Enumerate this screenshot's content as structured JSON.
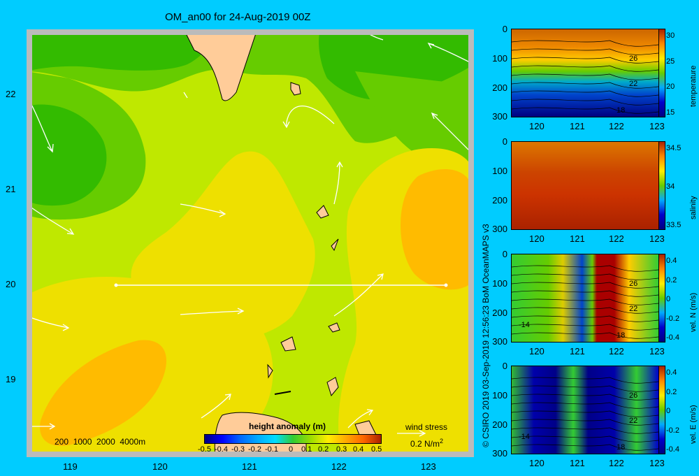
{
  "title": "OM_an00 for 24-Aug-2019 00Z",
  "main_map": {
    "x_ticks": [
      "119",
      "120",
      "121",
      "122",
      "123"
    ],
    "y_ticks": [
      "22",
      "21",
      "20",
      "19"
    ],
    "depth_legend": "200  1000  2000  4000m",
    "colorbar_title": "height anomaly  (m)",
    "colorbar_ticks": [
      "-0.5",
      "-0.4",
      "-0.3",
      "-0.2",
      "-0.1",
      "0",
      "0.1",
      "0.2",
      "0.3",
      "0.4",
      "0.5"
    ],
    "wind_stress_label": "wind stress",
    "wind_stress_scale": "0.2 N/m",
    "wind_stress_exp": "2"
  },
  "credit": "© CSIRO 2019   03-Sep-2019 12:56:23 BoM OceanMAPS v3",
  "colors": {
    "background": "#00ccff",
    "land": "#ffcc99",
    "shelf": "#c0b0a0",
    "arrow": "#ffffff"
  },
  "chart_data": [
    {
      "type": "heatmap",
      "title": "OM_an00 for 24-Aug-2019 00Z",
      "xlabel": "",
      "ylabel": "",
      "xlim": [
        118.5,
        123.5
      ],
      "ylim": [
        18.3,
        22.6
      ],
      "x_ticks": [
        119,
        120,
        121,
        122,
        123
      ],
      "y_ticks": [
        19,
        20,
        21,
        22
      ],
      "colorbar": {
        "label": "height anomaly  (m)",
        "range": [
          -0.5,
          0.5
        ]
      },
      "features": [
        {
          "name": "cold eddy NW",
          "lon": 119.0,
          "lat": 21.5,
          "value": 0.0
        },
        {
          "name": "warm eddy E",
          "lon": 123.0,
          "lat": 20.7,
          "value": 0.3
        },
        {
          "name": "warm eddy SW",
          "lon": 119.5,
          "lat": 18.8,
          "value": 0.3
        },
        {
          "name": "band",
          "lon": 120.5,
          "lat": 20.0,
          "value": 0.2
        }
      ],
      "section_line": {
        "lon": [
          119.5,
          123.2
        ],
        "lat": [
          20.0,
          20.0
        ]
      }
    },
    {
      "type": "heatmap",
      "title": "",
      "ylabel": "temperature",
      "x_ticks": [
        120,
        121,
        122,
        123
      ],
      "y_ticks": [
        0,
        100,
        200,
        300
      ],
      "colorbar_ticks": [
        30,
        25,
        20,
        15
      ],
      "contour_labels": [
        "26",
        "22",
        "18"
      ]
    },
    {
      "type": "heatmap",
      "title": "",
      "ylabel": "salinity",
      "x_ticks": [
        120,
        121,
        122,
        123
      ],
      "y_ticks": [
        0,
        100,
        200,
        300
      ],
      "colorbar_ticks": [
        34.5,
        34,
        33.5
      ]
    },
    {
      "type": "heatmap",
      "title": "",
      "ylabel": "vel. N  (m/s)",
      "x_ticks": [
        120,
        121,
        122,
        123
      ],
      "y_ticks": [
        0,
        100,
        200,
        300
      ],
      "colorbar_ticks": [
        0.4,
        0.2,
        0,
        -0.2,
        -0.4
      ],
      "contour_labels": [
        "26",
        "22",
        "18",
        "-14"
      ]
    },
    {
      "type": "heatmap",
      "title": "",
      "ylabel": "vel. E  (m/s)",
      "x_ticks": [
        120,
        121,
        122,
        123
      ],
      "y_ticks": [
        0,
        100,
        200,
        300
      ],
      "colorbar_ticks": [
        0.4,
        0.2,
        0,
        -0.2,
        -0.4
      ],
      "contour_labels": [
        "26",
        "22",
        "18",
        "-14"
      ]
    }
  ],
  "side_panels": [
    {
      "ylabel": "temperature",
      "xticks": [
        "120",
        "121",
        "122",
        "123"
      ],
      "yticks": [
        "0",
        "100",
        "200",
        "300"
      ],
      "cticks": [
        "30",
        "25",
        "20",
        "15"
      ],
      "contours": [
        "26",
        "22",
        "18"
      ]
    },
    {
      "ylabel": "salinity",
      "xticks": [
        "120",
        "121",
        "122",
        "123"
      ],
      "yticks": [
        "0",
        "100",
        "200",
        "300"
      ],
      "cticks": [
        "34.5",
        "34",
        "33.5"
      ],
      "contours": []
    },
    {
      "ylabel": "vel. N  (m/s)",
      "xticks": [
        "120",
        "121",
        "122",
        "123"
      ],
      "yticks": [
        "0",
        "100",
        "200",
        "300"
      ],
      "cticks": [
        "0.4",
        "0.2",
        "0",
        "-0.2",
        "-0.4"
      ],
      "contours": [
        "26",
        "22",
        "18",
        "-14"
      ]
    },
    {
      "ylabel": "vel. E  (m/s)",
      "xticks": [
        "120",
        "121",
        "122",
        "123"
      ],
      "yticks": [
        "0",
        "100",
        "200",
        "300"
      ],
      "cticks": [
        "0.4",
        "0.2",
        "0",
        "-0.2",
        "-0.4"
      ],
      "contours": [
        "26",
        "22",
        "18",
        "-14"
      ]
    }
  ]
}
